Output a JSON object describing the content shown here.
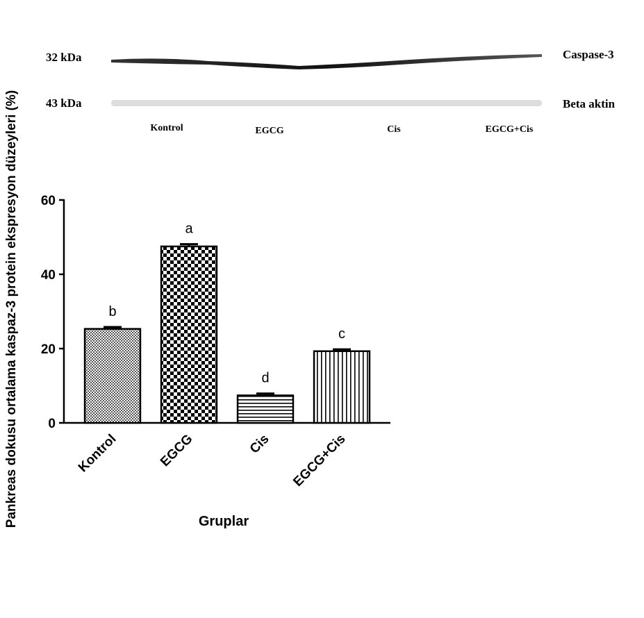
{
  "blot": {
    "markers": [
      "32 kDa",
      "43 kDa"
    ],
    "proteins": [
      "Caspase-3",
      "Beta aktin"
    ],
    "lanes": [
      "Kontrol",
      "EGCG",
      "Cis",
      "EGCG+Cis"
    ]
  },
  "chart_data": {
    "type": "bar",
    "ylabel": "Pankreas dokusu ortalama kaspaz-3 protein ekspresyon düzeyleri (%)",
    "xlabel": "Gruplar",
    "categories": [
      "Kontrol",
      "EGCG",
      "Cis",
      "EGCG+Cis"
    ],
    "values": [
      25.3,
      47.5,
      7.4,
      19.3
    ],
    "errors": [
      0.5,
      0.6,
      0.5,
      0.5
    ],
    "annotations": [
      "b",
      "a",
      "d",
      "c"
    ],
    "color": "#000000",
    "ylim": [
      0,
      60
    ],
    "yticks": [
      0,
      20,
      40,
      60
    ],
    "grid": false
  }
}
